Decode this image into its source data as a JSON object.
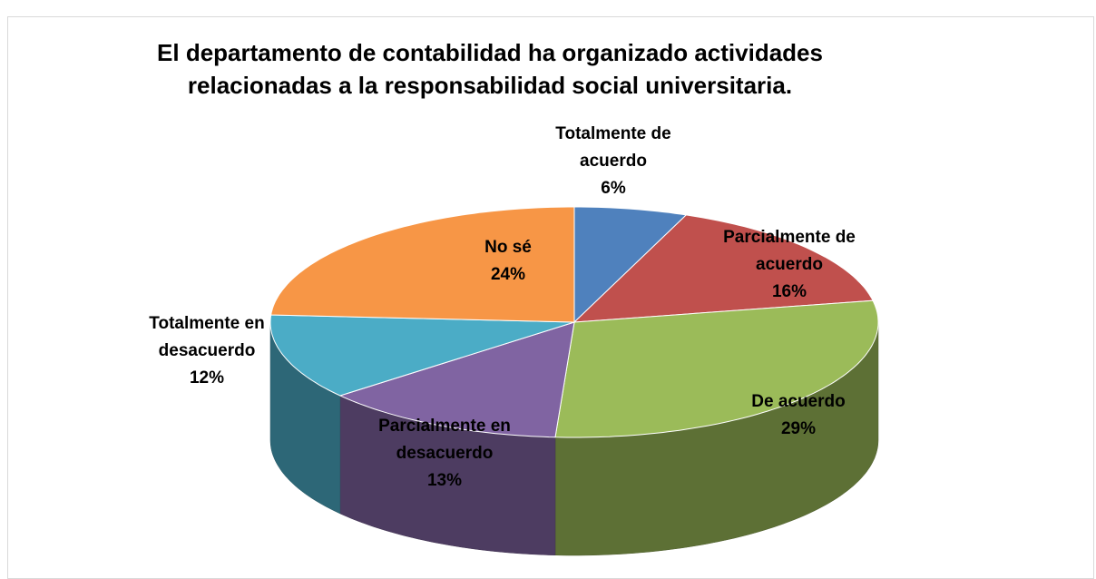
{
  "chart_data": {
    "type": "pie",
    "title": "El departamento de contabilidad ha organizado actividades relacionadas a la responsabilidad social universitaria.",
    "categories": [
      "Totalmente de acuerdo",
      "Parcialmente de acuerdo",
      "De acuerdo",
      "Parcialmente en desacuerdo",
      "Totalmente en desacuerdo",
      "No sé"
    ],
    "values": [
      6,
      16,
      29,
      13,
      12,
      24
    ],
    "value_labels": [
      "6%",
      "16%",
      "29%",
      "13%",
      "12%",
      "24%"
    ],
    "colors": [
      "#4f81bd",
      "#c0504d",
      "#9bbb59",
      "#8064a2",
      "#4bacc6",
      "#f79646"
    ]
  }
}
